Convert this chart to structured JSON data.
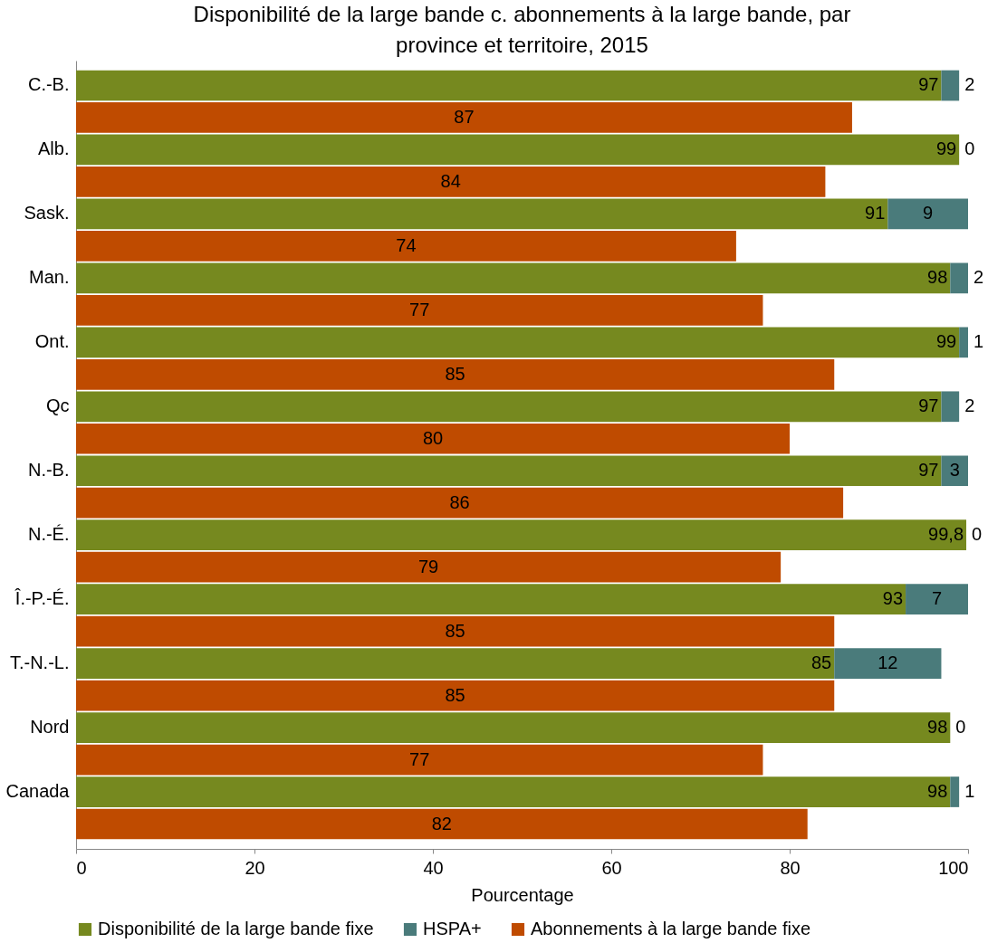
{
  "chart_data": {
    "type": "bar",
    "orientation": "horizontal",
    "stacked": true,
    "title": "Disponibilité de la large bande c. abonnements à la large bande, par province et territoire, 2015",
    "xlabel": "Pourcentage",
    "categories": [
      "C.-B.",
      null,
      "Alb.",
      null,
      "Sask.",
      null,
      "Man.",
      null,
      "Ont.",
      null,
      "Qc",
      null,
      "N.-B.",
      null,
      "N.-É.",
      null,
      "Î.-P.-É.",
      null,
      "T.-N.-L.",
      null,
      "Nord",
      null,
      "Canada",
      null
    ],
    "series": [
      {
        "name": "Disponibilité de la large bande fixe",
        "color": "#76891f",
        "values": [
          97,
          null,
          99,
          null,
          91,
          null,
          98,
          null,
          99,
          null,
          97,
          null,
          97,
          null,
          99.8,
          null,
          93,
          null,
          85,
          null,
          98,
          null,
          98,
          null
        ],
        "value_labels": [
          "97",
          null,
          "99",
          null,
          "91",
          null,
          "98",
          null,
          "99",
          null,
          "97",
          null,
          "97",
          null,
          "99,8",
          null,
          "93",
          null,
          "85",
          null,
          "98",
          null,
          "98",
          null
        ]
      },
      {
        "name": "HSPA+",
        "color": "#4a7b7b",
        "values": [
          2,
          null,
          0,
          null,
          9,
          null,
          2,
          null,
          1,
          null,
          2,
          null,
          3,
          null,
          0,
          null,
          7,
          null,
          12,
          null,
          0,
          null,
          1,
          null
        ],
        "value_labels": [
          "2",
          null,
          "0",
          null,
          "9",
          null,
          "2",
          null,
          "1",
          null,
          "2",
          null,
          "3",
          null,
          "0",
          null,
          "7",
          null,
          "12",
          null,
          "0",
          null,
          "1",
          null
        ]
      },
      {
        "name": "Abonnements à la large bande fixe",
        "color": "#bf4b00",
        "values": [
          null,
          87,
          null,
          84,
          null,
          74,
          null,
          77,
          null,
          85,
          null,
          80,
          null,
          86,
          null,
          79,
          null,
          85,
          null,
          85,
          null,
          77,
          null,
          82
        ],
        "value_labels": [
          null,
          "87",
          null,
          "84",
          null,
          "74",
          null,
          "77",
          null,
          "85",
          null,
          "80",
          null,
          "86",
          null,
          "79",
          null,
          "85",
          null,
          "85",
          null,
          "77",
          null,
          "82"
        ]
      }
    ],
    "xlim": [
      0,
      100
    ],
    "xticks": [
      0,
      20,
      40,
      60,
      80,
      100
    ],
    "grid": false,
    "legend": "bottom"
  }
}
